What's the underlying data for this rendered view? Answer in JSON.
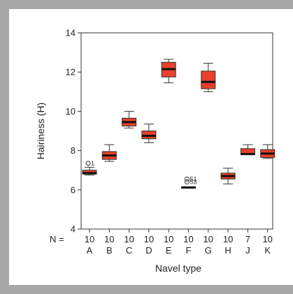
{
  "chart_data": {
    "type": "boxplot",
    "xlabel": "Navel type",
    "ylabel": "Hairiness (H)",
    "ylim": [
      4,
      14
    ],
    "yticks": [
      4,
      6,
      8,
      10,
      12,
      14
    ],
    "n_prefix": "N =",
    "box_color": "#e8402a",
    "categories": [
      {
        "name": "A",
        "n": "10",
        "min": 6.75,
        "q1": 6.8,
        "median": 6.85,
        "q3": 7.0,
        "max": 7.15,
        "outliers": [
          {
            "value": 7.35,
            "label": "1"
          }
        ]
      },
      {
        "name": "B",
        "n": "10",
        "min": 7.45,
        "q1": 7.55,
        "median": 7.75,
        "q3": 7.95,
        "max": 8.3,
        "outliers": []
      },
      {
        "name": "C",
        "n": "10",
        "min": 9.15,
        "q1": 9.25,
        "median": 9.45,
        "q3": 9.65,
        "max": 10.0,
        "outliers": []
      },
      {
        "name": "D",
        "n": "10",
        "min": 8.4,
        "q1": 8.6,
        "median": 8.75,
        "q3": 9.0,
        "max": 9.35,
        "outliers": []
      },
      {
        "name": "E",
        "n": "10",
        "min": 11.45,
        "q1": 11.75,
        "median": 12.15,
        "q3": 12.5,
        "max": 12.65,
        "outliers": []
      },
      {
        "name": "F",
        "n": "10",
        "min": 6.1,
        "q1": 6.1,
        "median": 6.12,
        "q3": 6.15,
        "max": 6.15,
        "outliers": [
          {
            "value": 6.55,
            "label": "51"
          },
          {
            "value": 6.4,
            "label": "53"
          }
        ]
      },
      {
        "name": "G",
        "n": "10",
        "min": 11.0,
        "q1": 11.15,
        "median": 11.5,
        "q3": 12.05,
        "max": 12.45,
        "outliers": []
      },
      {
        "name": "H",
        "n": "10",
        "min": 6.3,
        "q1": 6.55,
        "median": 6.7,
        "q3": 6.85,
        "max": 7.1,
        "outliers": []
      },
      {
        "name": "J",
        "n": "7",
        "min": 7.8,
        "q1": 7.8,
        "median": 7.82,
        "q3": 8.1,
        "max": 8.3,
        "outliers": []
      },
      {
        "name": "K",
        "n": "10",
        "min": 7.6,
        "q1": 7.65,
        "median": 7.85,
        "q3": 8.05,
        "max": 8.3,
        "outliers": []
      }
    ]
  }
}
